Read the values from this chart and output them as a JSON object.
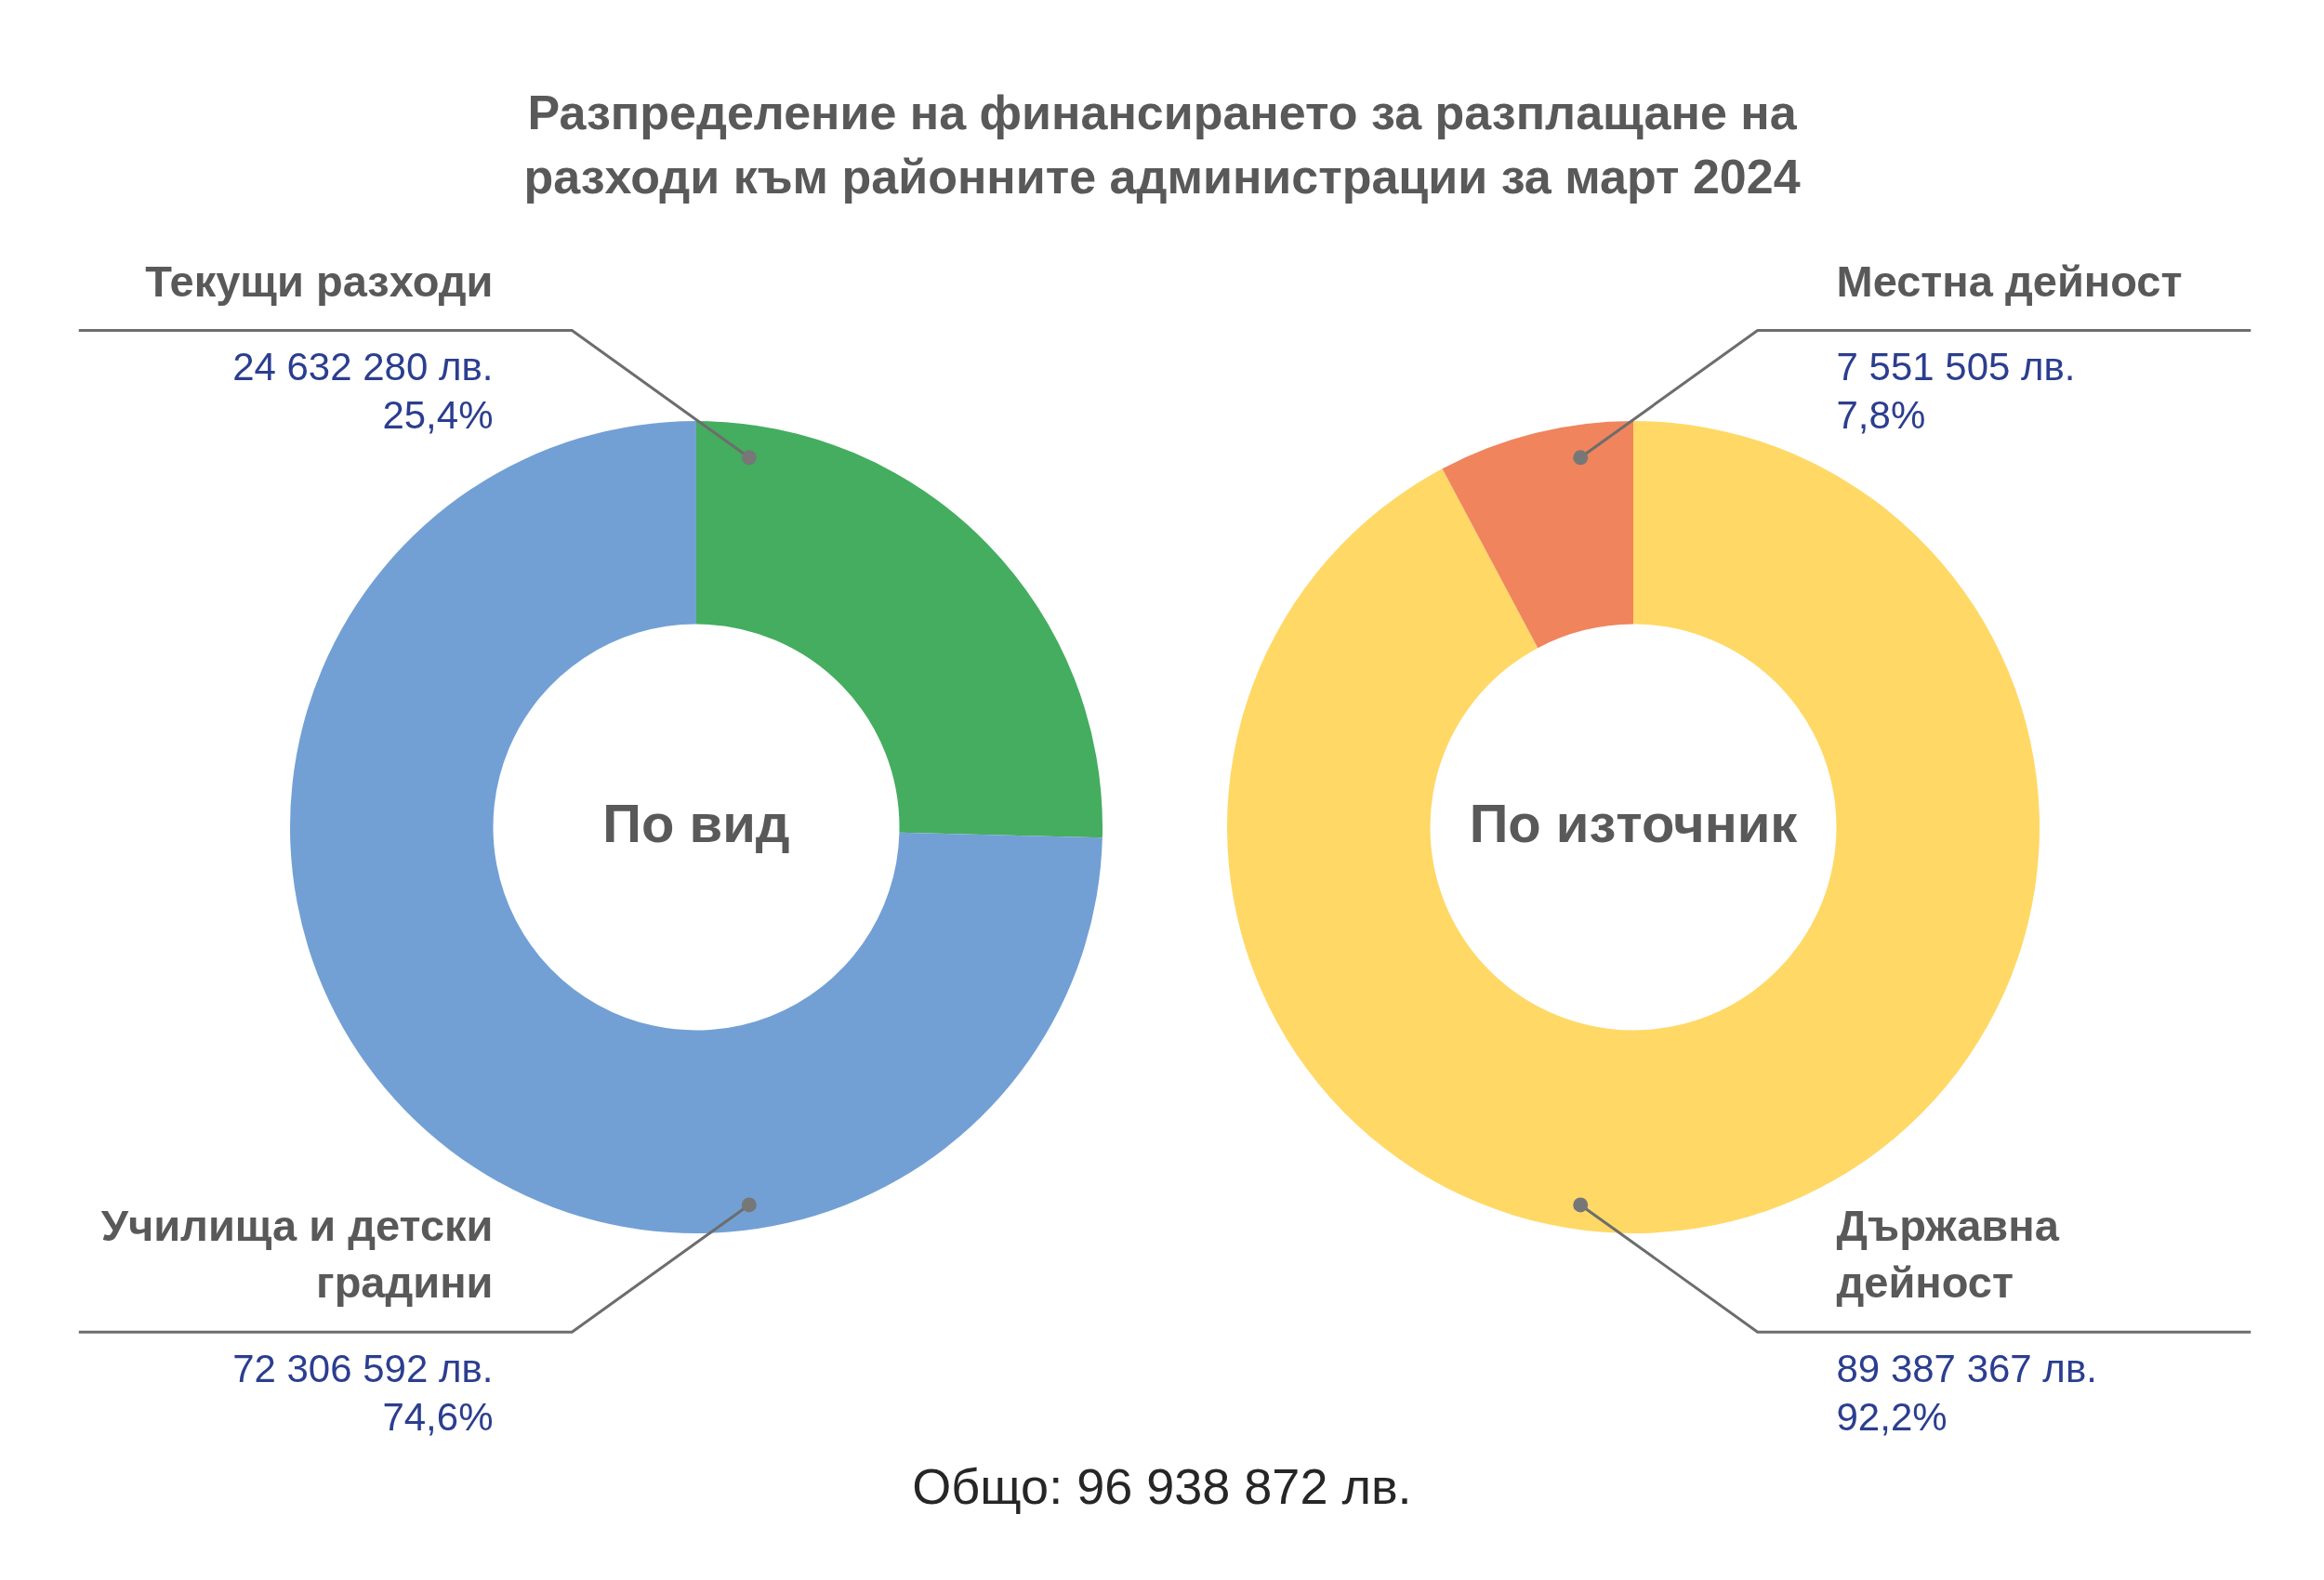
{
  "chart_data": [
    {
      "type": "donut",
      "title": "Разпределение на финансирането за разплащане на разходи към районните администрации за март 2024",
      "categories": [
        "Текущи разходи",
        "Училища и детски градини"
      ],
      "values": [
        24632280,
        72306592
      ],
      "colors": [
        "#45ad5f",
        "#72a0d5"
      ],
      "value_labels": [
        "24 632 280 лв. 25,4%",
        "72 306 592 лв. 74,6%"
      ],
      "annotations": [
        "По вид",
        "Общо: 96 938 872 лв."
      ]
    },
    {
      "type": "donut",
      "categories": [
        "Държавна дейност",
        "Местна дейност"
      ],
      "values": [
        89387367,
        7551505
      ],
      "colors": [
        "#ffd865",
        "#f0845d"
      ],
      "value_labels": [
        "89 387 367 лв. 92,2%",
        "7 551 505 лв. 7,8%"
      ],
      "annotations": [
        "По източник"
      ]
    }
  ]
}
